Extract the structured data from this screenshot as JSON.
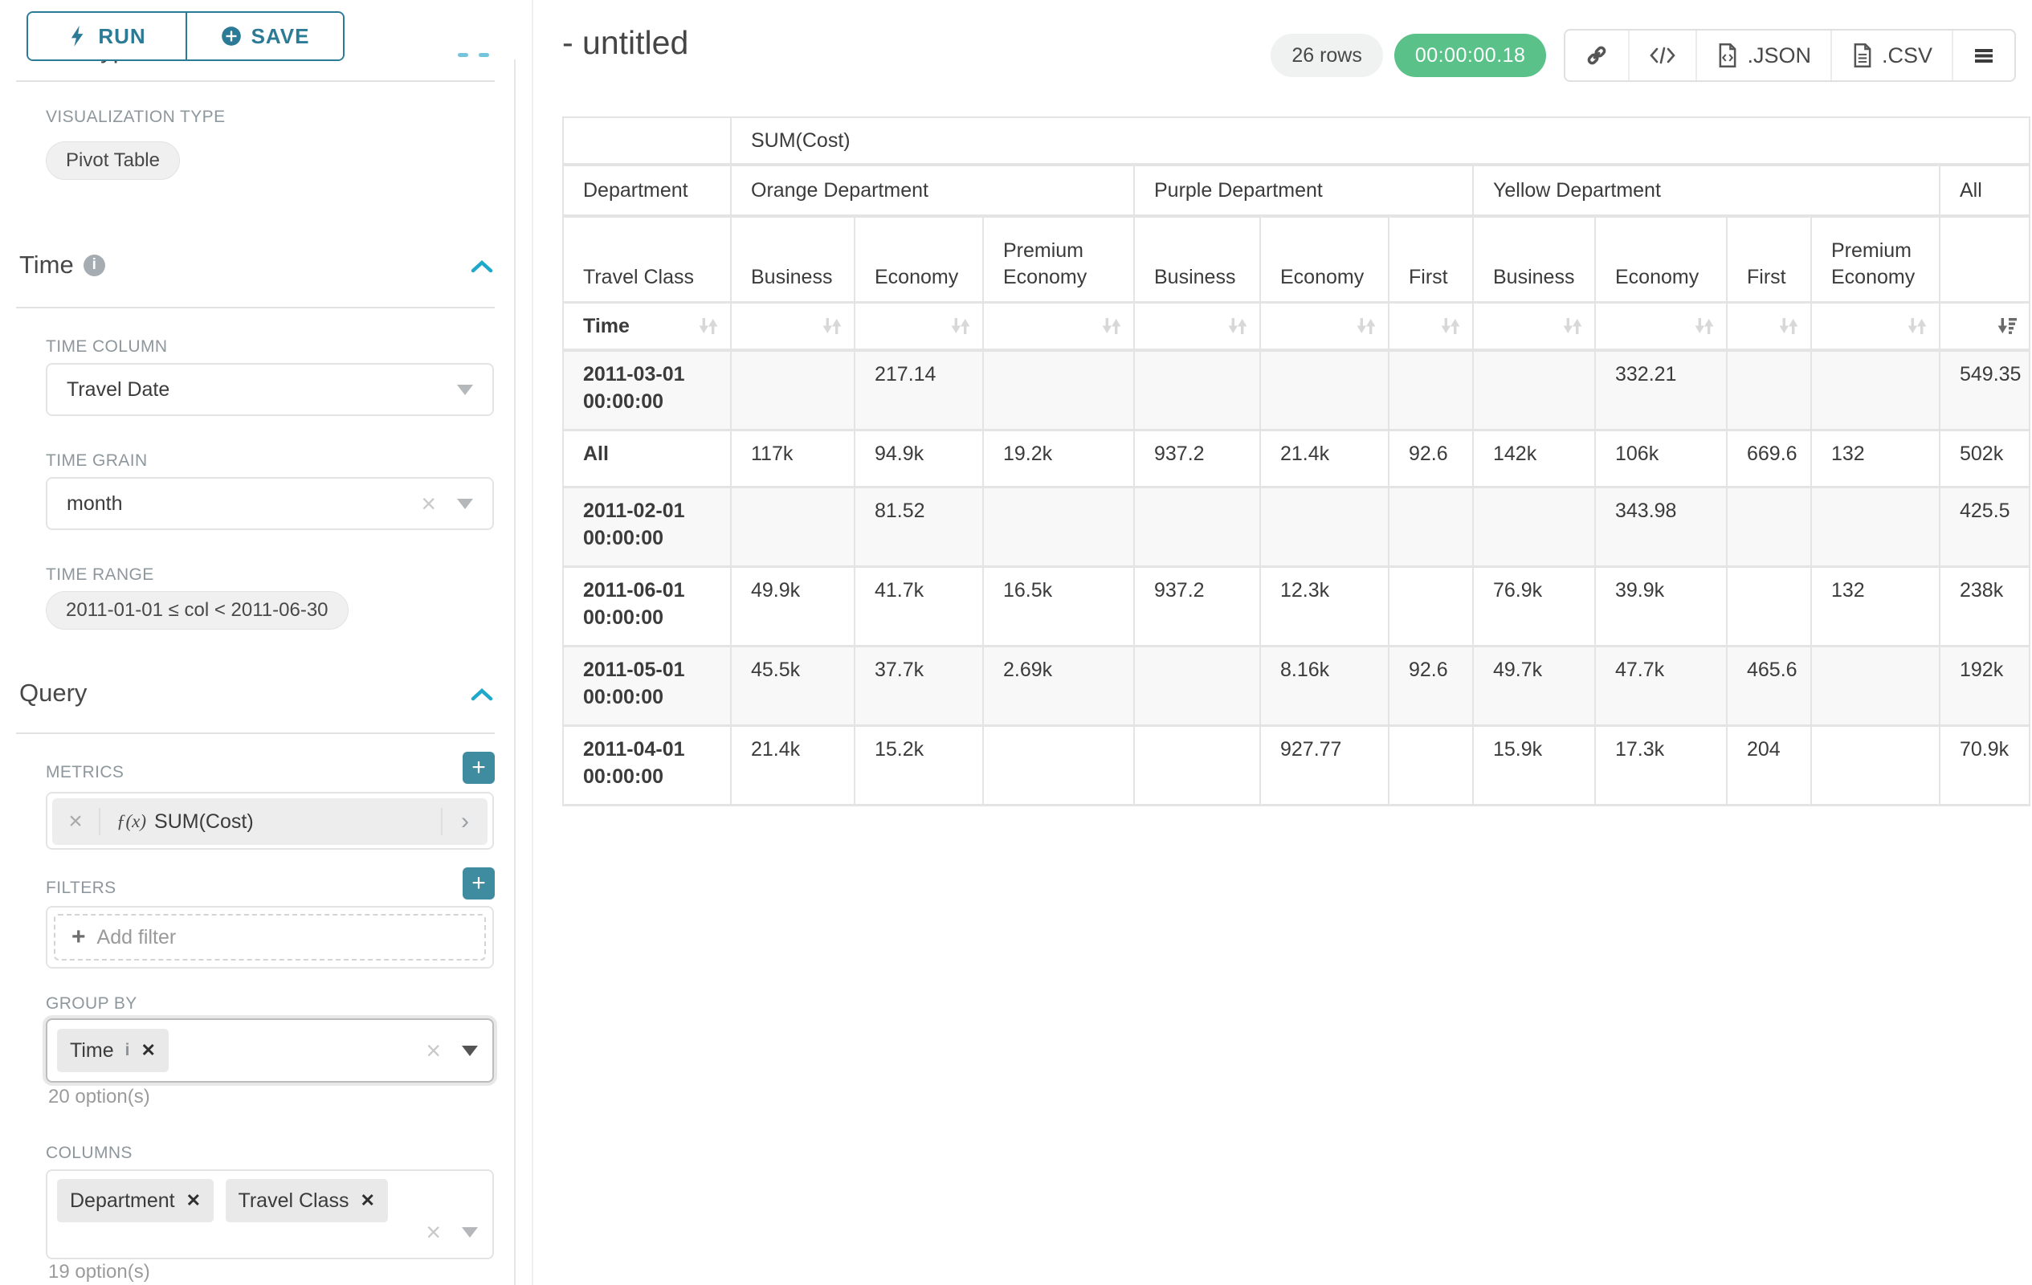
{
  "sidebar": {
    "clipped_header": "Chart Type",
    "run_label": "RUN",
    "save_label": "SAVE",
    "viz_type_label": "VISUALIZATION TYPE",
    "viz_type_value": "Pivot Table",
    "time": {
      "title": "Time",
      "time_column_label": "TIME COLUMN",
      "time_column_value": "Travel Date",
      "time_grain_label": "TIME GRAIN",
      "time_grain_value": "month",
      "time_range_label": "TIME RANGE",
      "time_range_value": "2011-01-01 ≤ col < 2011-06-30"
    },
    "query": {
      "title": "Query",
      "metrics_label": "METRICS",
      "metric_fx": "ƒ(x)",
      "metric_value": "SUM(Cost)",
      "filters_label": "FILTERS",
      "add_filter_label": "Add filter",
      "groupby_label": "GROUP BY",
      "groupby_chip": "Time",
      "groupby_options": "20 option(s)",
      "columns_label": "COLUMNS",
      "columns_chips": [
        "Department",
        "Travel Class"
      ],
      "columns_options": "19 option(s)"
    }
  },
  "header": {
    "title": "- untitled",
    "rows_badge": "26 rows",
    "timer": "00:00:00.18",
    "json_label": ".JSON",
    "csv_label": ".CSV"
  },
  "table": {
    "metric_header": "SUM(Cost)",
    "department_label": "Department",
    "travel_class_label": "Travel Class",
    "time_label": "Time",
    "groups": [
      {
        "name": "Orange Department",
        "cols": [
          "Business",
          "Economy",
          "Premium Economy"
        ]
      },
      {
        "name": "Purple Department",
        "cols": [
          "Business",
          "Economy",
          "First"
        ]
      },
      {
        "name": "Yellow Department",
        "cols": [
          "Business",
          "Economy",
          "First",
          "Premium Economy"
        ]
      },
      {
        "name": "All",
        "cols": [
          ""
        ]
      }
    ],
    "rows": [
      {
        "label": "2011-03-01 00:00:00",
        "values": [
          "",
          "217.14",
          "",
          "",
          "",
          "",
          "",
          "332.21",
          "",
          "",
          "549.35"
        ]
      },
      {
        "label": "All",
        "values": [
          "117k",
          "94.9k",
          "19.2k",
          "937.2",
          "21.4k",
          "92.6",
          "142k",
          "106k",
          "669.6",
          "132",
          "502k"
        ]
      },
      {
        "label": "2011-02-01 00:00:00",
        "values": [
          "",
          "81.52",
          "",
          "",
          "",
          "",
          "",
          "343.98",
          "",
          "",
          "425.5"
        ]
      },
      {
        "label": "2011-06-01 00:00:00",
        "values": [
          "49.9k",
          "41.7k",
          "16.5k",
          "937.2",
          "12.3k",
          "",
          "76.9k",
          "39.9k",
          "",
          "132",
          "238k"
        ]
      },
      {
        "label": "2011-05-01 00:00:00",
        "values": [
          "45.5k",
          "37.7k",
          "2.69k",
          "",
          "8.16k",
          "92.6",
          "49.7k",
          "47.7k",
          "465.6",
          "",
          "192k"
        ]
      },
      {
        "label": "2011-04-01 00:00:00",
        "values": [
          "21.4k",
          "15.2k",
          "",
          "",
          "927.77",
          "",
          "15.9k",
          "17.3k",
          "204",
          "",
          "70.9k"
        ]
      }
    ]
  }
}
